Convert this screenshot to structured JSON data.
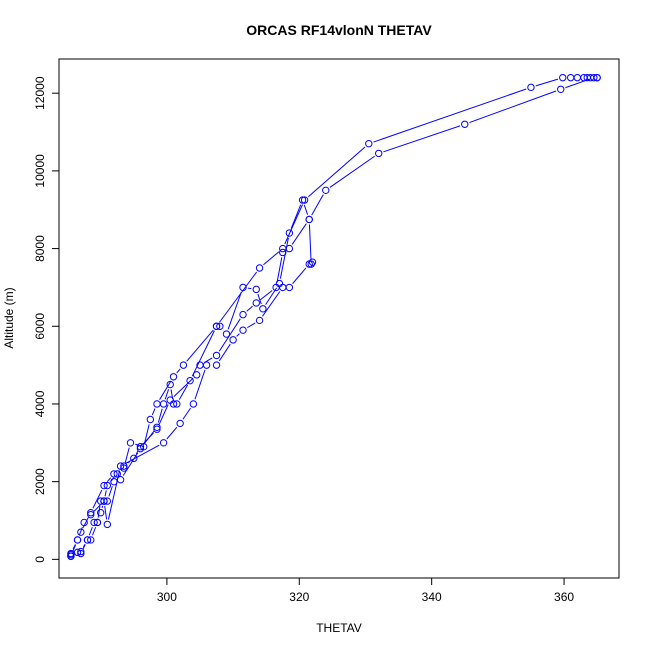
{
  "chart_data": {
    "type": "line",
    "title": "ORCAS RF14vlonN THETAV",
    "xlabel": "THETAV",
    "ylabel": "Altitude (m)",
    "xlim": [
      283.7,
      368.3
    ],
    "ylim": [
      -480,
      12880
    ],
    "xticks": [
      300,
      320,
      340,
      360
    ],
    "yticks": [
      0,
      2000,
      4000,
      6000,
      8000,
      10000,
      12000
    ],
    "grid": false,
    "color": "#0000ff",
    "series": [
      {
        "x": [
          365,
          364,
          363.5,
          363,
          362,
          361,
          359.8,
          355,
          330.5,
          320.8,
          317.5,
          314,
          307.5,
          302.5,
          301,
          298.5,
          297.5,
          296.5,
          294.5,
          293.5,
          292,
          290.5,
          288.5,
          287,
          286.5,
          285.5,
          285.5,
          286.5,
          287,
          288,
          288.5,
          289.5,
          290,
          290.5,
          291,
          292,
          293,
          296,
          298.5,
          299.5,
          300.5,
          301,
          301.5,
          303.5,
          307.5,
          308,
          309,
          311.5,
          313.5,
          314.5,
          317,
          318.5,
          320.5,
          321.5,
          321.8,
          322
        ],
        "y": [
          12400,
          12400,
          12400,
          12400,
          12400,
          12400,
          12400,
          12150,
          10700,
          9250,
          8000,
          7500,
          6000,
          5000,
          4700,
          4000,
          3600,
          2900,
          3000,
          2350,
          2200,
          1900,
          1200,
          700,
          500,
          150,
          80,
          180,
          150,
          500,
          500,
          950,
          1500,
          1500,
          1500,
          2000,
          2050,
          2850,
          3400,
          4000,
          4500,
          4000,
          4000,
          4600,
          6000,
          6000,
          5800,
          7000,
          6950,
          6450,
          7100,
          8400,
          9250,
          8750,
          7600,
          7650
        ]
      },
      {
        "x": [
          365,
          364.5,
          359.5,
          345,
          332,
          324,
          321.5,
          318.5,
          317.5,
          316.5,
          313.5,
          311.5,
          307.5,
          305,
          304.5,
          300.5,
          298.5,
          296,
          295,
          293.5,
          292.5,
          291,
          290.5,
          288.5,
          287.5,
          286.5,
          285.5,
          285.5,
          287,
          288,
          289,
          289.5,
          290,
          290.5,
          291,
          293,
          299.5,
          302,
          304,
          306,
          307.5,
          310,
          311.5,
          314,
          317.5,
          318.5,
          321.5
        ],
        "y": [
          12400,
          12400,
          12100,
          11200,
          10450,
          9500,
          8750,
          8000,
          7900,
          7000,
          6600,
          6300,
          5250,
          5000,
          4750,
          4100,
          3350,
          2900,
          2600,
          2400,
          2200,
          1900,
          1500,
          1150,
          950,
          500,
          80,
          120,
          200,
          500,
          950,
          950,
          1200,
          1500,
          900,
          2400,
          3000,
          3500,
          4000,
          5000,
          5000,
          5650,
          5900,
          6150,
          7000,
          7000,
          7600
        ]
      }
    ]
  }
}
